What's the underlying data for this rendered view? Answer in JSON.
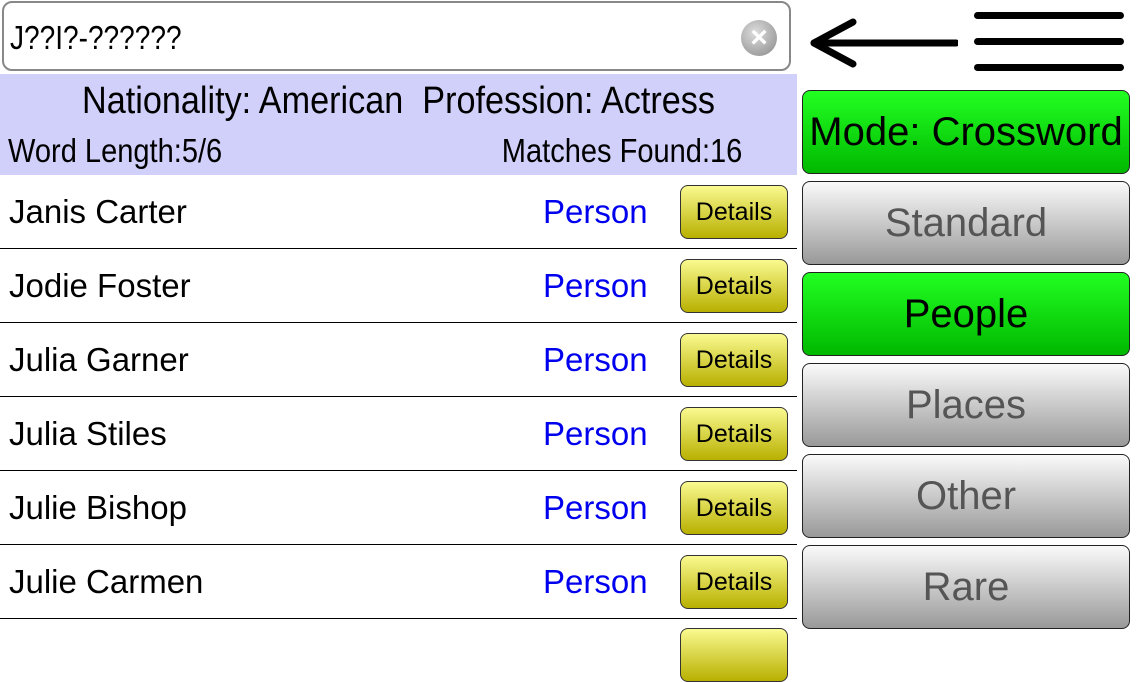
{
  "search": {
    "value": "J??I?-??????"
  },
  "info": {
    "nationality": "Nationality: American",
    "profession": "Profession: Actress",
    "word_length": "Word Length:5/6",
    "matches": "Matches Found:16"
  },
  "results": [
    {
      "name": "Janis Carter",
      "type": "Person",
      "action": "Details"
    },
    {
      "name": "Jodie Foster",
      "type": "Person",
      "action": "Details"
    },
    {
      "name": "Julia Garner",
      "type": "Person",
      "action": "Details"
    },
    {
      "name": "Julia Stiles",
      "type": "Person",
      "action": "Details"
    },
    {
      "name": "Julie Bishop",
      "type": "Person",
      "action": "Details"
    },
    {
      "name": "Julie Carmen",
      "type": "Person",
      "action": "Details"
    }
  ],
  "sidebar": {
    "mode": "Mode: Crossword",
    "buttons": [
      {
        "label": "Standard",
        "active": false
      },
      {
        "label": "People",
        "active": true
      },
      {
        "label": "Places",
        "active": false
      },
      {
        "label": "Other",
        "active": false
      },
      {
        "label": "Rare",
        "active": false
      }
    ]
  },
  "colors": {
    "active": "#00dd00",
    "info_bg": "#d0d0fa",
    "details": "#e0e040",
    "link": "#0000ee"
  }
}
